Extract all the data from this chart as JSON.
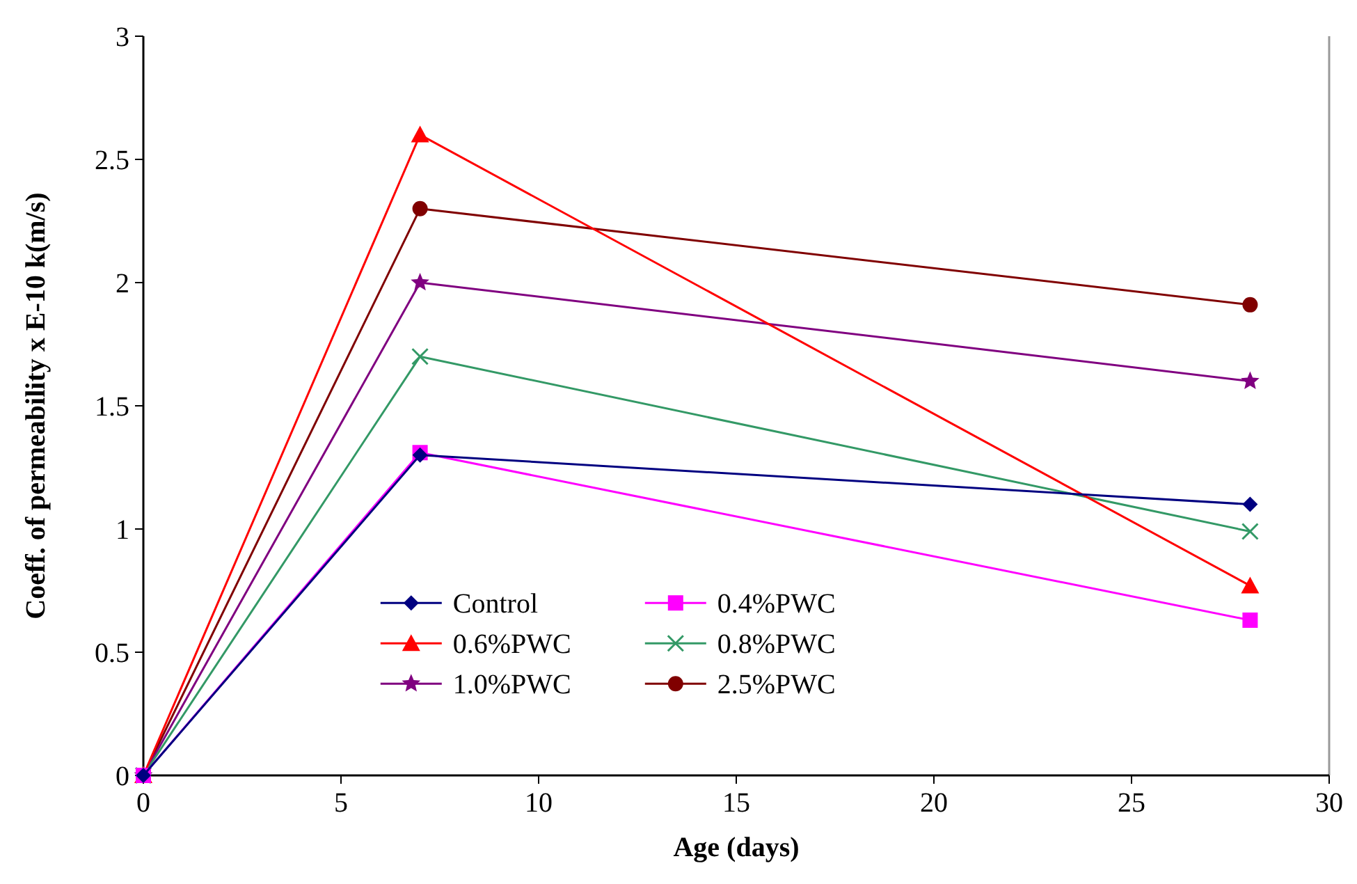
{
  "chart_data": {
    "type": "line",
    "xlabel": "Age (days)",
    "ylabel": "Coeff. of permeability x E-10 k(m/s)",
    "xlim": [
      0,
      30
    ],
    "xticks": [
      0,
      5,
      10,
      15,
      20,
      25,
      30
    ],
    "ylim": [
      0,
      3
    ],
    "yticks": [
      0,
      0.5,
      1,
      1.5,
      2,
      2.5,
      3
    ],
    "x": [
      0,
      7,
      28
    ],
    "grid": false,
    "legend": "bottom left",
    "series": [
      {
        "name": "Control",
        "color": "#000080",
        "marker": "diamond",
        "values": [
          0,
          1.3,
          1.1
        ]
      },
      {
        "name": "0.4%PWC",
        "color": "#ff00ff",
        "marker": "square",
        "values": [
          0,
          1.31,
          0.63
        ]
      },
      {
        "name": "0.6%PWC",
        "color": "#ff0000",
        "marker": "triangle",
        "values": [
          0,
          2.6,
          0.77
        ]
      },
      {
        "name": "0.8%PWC",
        "color": "#339966",
        "marker": "cross",
        "values": [
          0,
          1.7,
          0.99
        ]
      },
      {
        "name": "1.0%PWC",
        "color": "#800080",
        "marker": "star",
        "values": [
          0,
          2.0,
          1.6
        ]
      },
      {
        "name": "2.5%PWC",
        "color": "#800000",
        "marker": "circle",
        "values": [
          0,
          2.3,
          1.91
        ]
      }
    ]
  }
}
